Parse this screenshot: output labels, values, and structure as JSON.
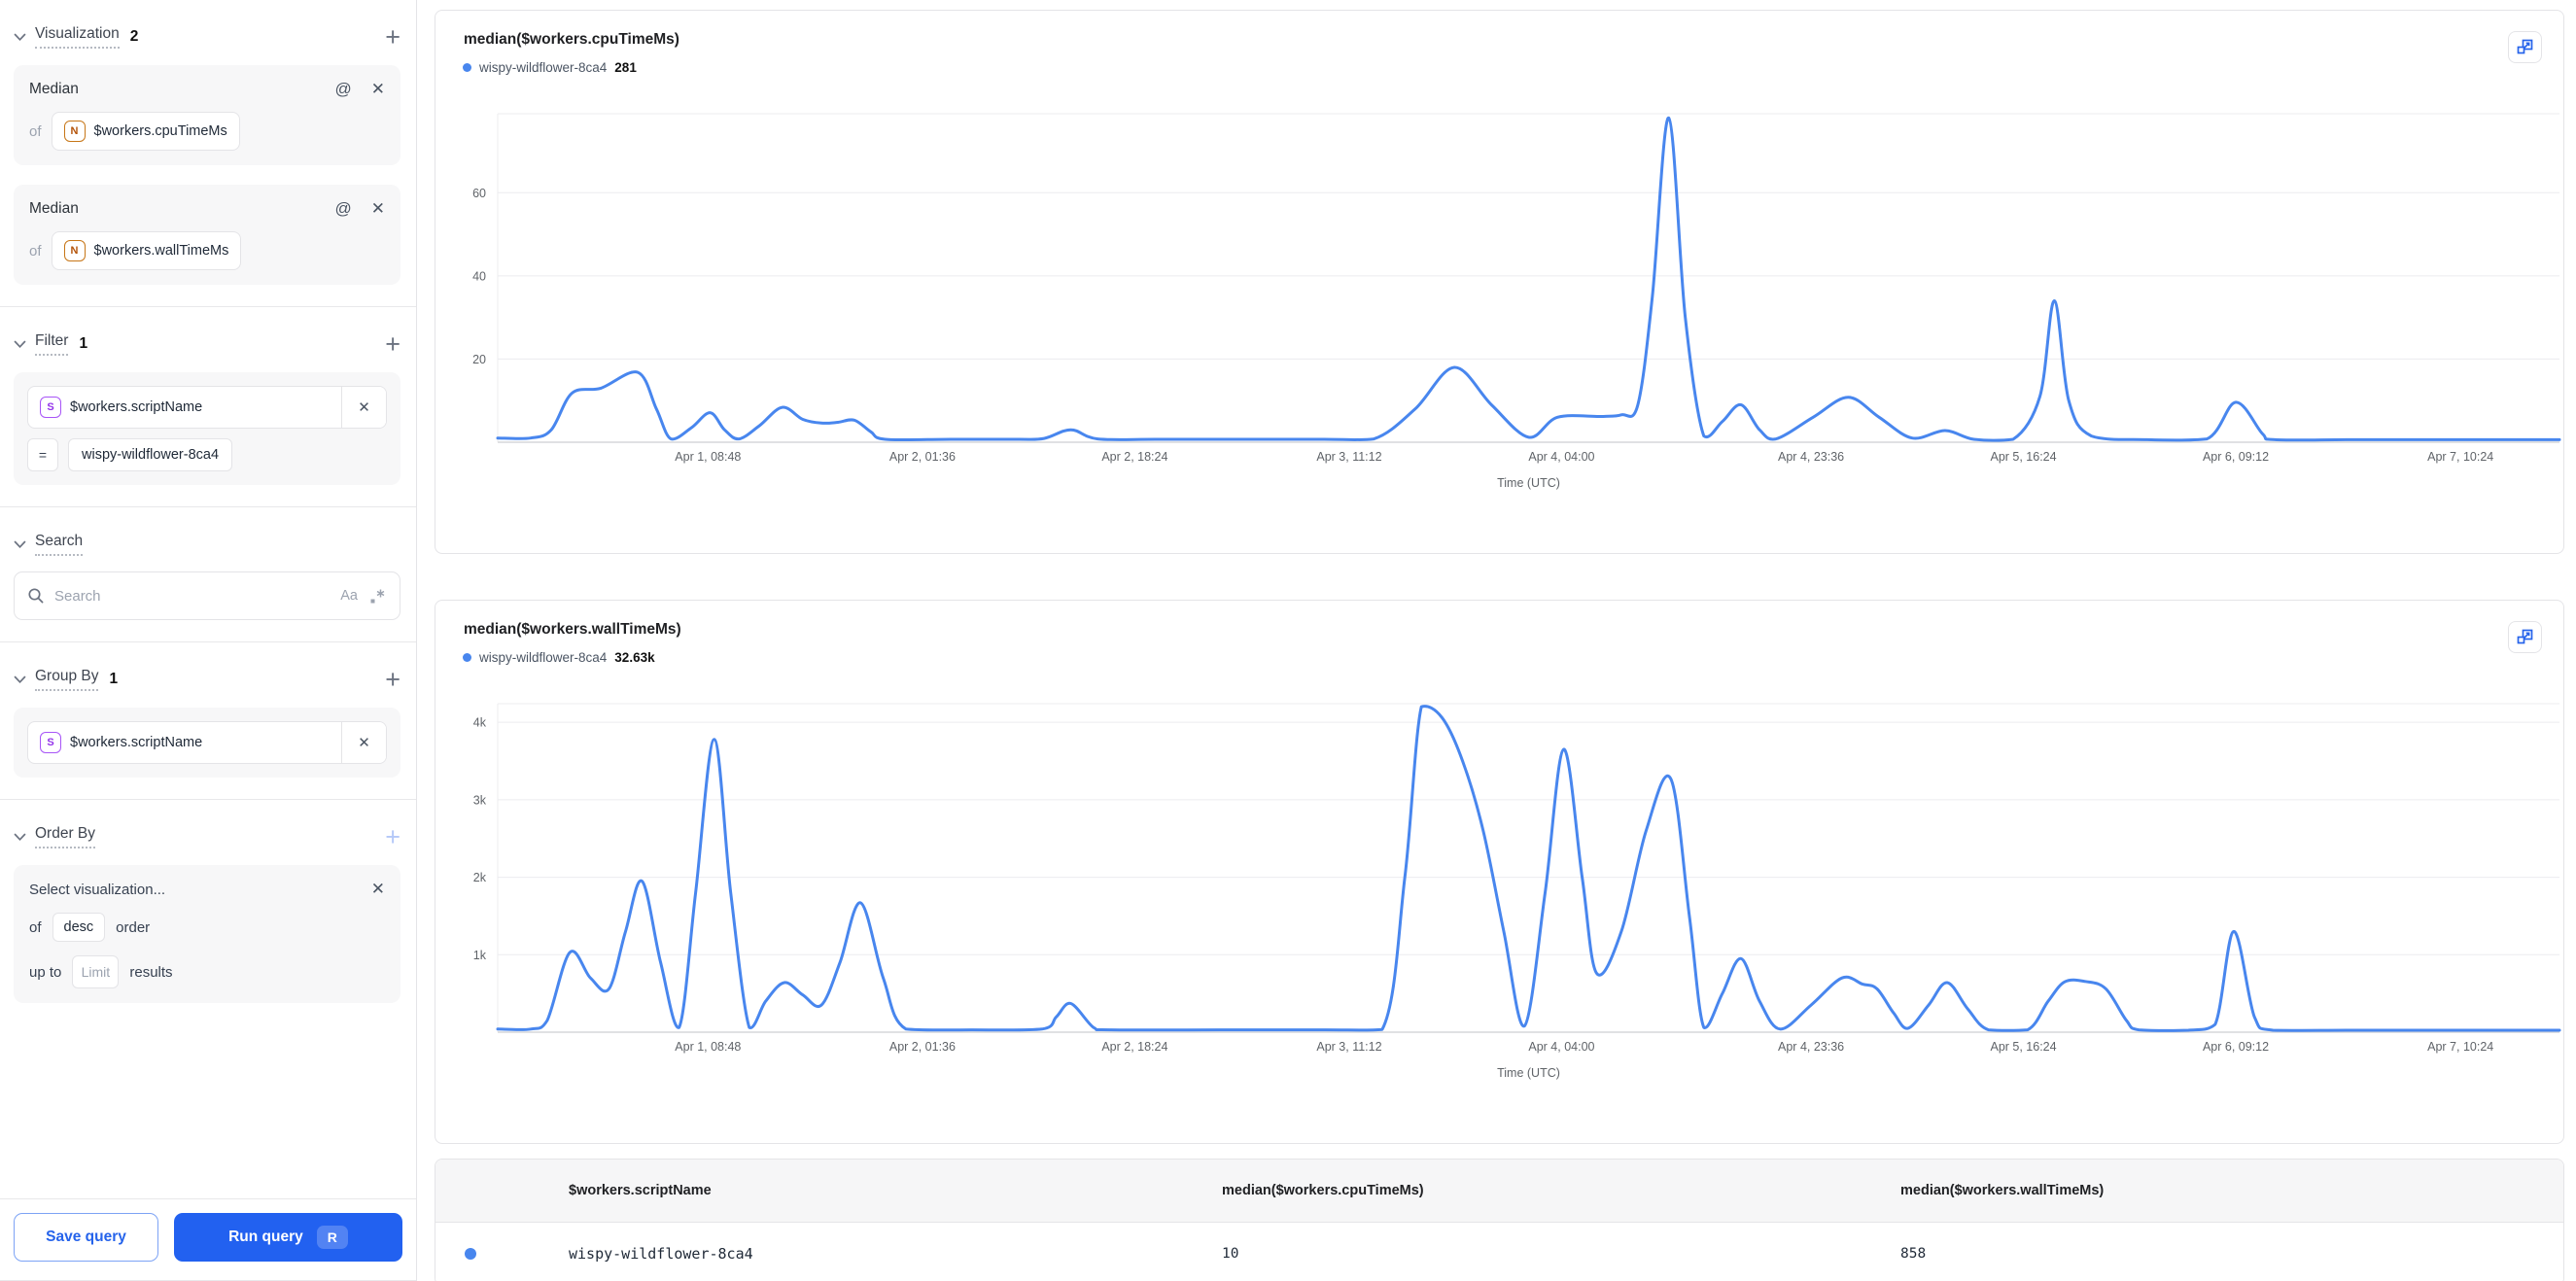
{
  "ui": {
    "accent": "#2563eb",
    "line_color": "#4886ee",
    "grid_color": "#ececef",
    "baseline_color": "#d5d7da"
  },
  "sidebar": {
    "visualization": {
      "label": "Visualization",
      "count": "2",
      "cards": [
        {
          "title": "Median",
          "of": "of",
          "type_letter": "N",
          "field": "$workers.cpuTimeMs"
        },
        {
          "title": "Median",
          "of": "of",
          "type_letter": "N",
          "field": "$workers.wallTimeMs"
        }
      ]
    },
    "filter": {
      "label": "Filter",
      "count": "1",
      "card": {
        "type_letter": "S",
        "field": "$workers.scriptName",
        "operator": "=",
        "value": "wispy-wildflower-8ca4"
      }
    },
    "search": {
      "label": "Search",
      "placeholder": "Search",
      "case_toggle": "Aa"
    },
    "group_by": {
      "label": "Group By",
      "count": "1",
      "card": {
        "type_letter": "S",
        "field": "$workers.scriptName"
      }
    },
    "order_by": {
      "label": "Order By",
      "card": {
        "placeholder": "Select visualization...",
        "of": "of",
        "direction": "desc",
        "order": "order",
        "up_to": "up to",
        "limit_placeholder": "Limit",
        "results": "results"
      }
    },
    "footer": {
      "save": "Save query",
      "run": "Run query",
      "shortcut": "R"
    }
  },
  "chart_data": [
    {
      "type": "line",
      "title": "median($workers.cpuTimeMs)",
      "xlabel": "Time (UTC)",
      "grid": "horizontal",
      "legend_position": "top-left",
      "ylim": [
        0,
        79
      ],
      "y_ticks": [
        {
          "value": 20,
          "label": "20"
        },
        {
          "value": 40,
          "label": "40"
        },
        {
          "value": 60,
          "label": "60"
        }
      ],
      "x_ticks": [
        {
          "f": 0.102,
          "label": "Apr 1, 08:48"
        },
        {
          "f": 0.206,
          "label": "Apr 2, 01:36"
        },
        {
          "f": 0.309,
          "label": "Apr 2, 18:24"
        },
        {
          "f": 0.413,
          "label": "Apr 3, 11:12"
        },
        {
          "f": 0.516,
          "label": "Apr 4, 04:00"
        },
        {
          "f": 0.637,
          "label": "Apr 4, 23:36"
        },
        {
          "f": 0.74,
          "label": "Apr 5, 16:24"
        },
        {
          "f": 0.843,
          "label": "Apr 6, 09:12"
        },
        {
          "f": 0.952,
          "label": "Apr 7, 10:24"
        }
      ],
      "series": [
        {
          "name": "wispy-wildflower-8ca4",
          "display_value": "281",
          "color": "#4886ee",
          "points": [
            [
              0,
              1
            ],
            [
              0.016,
              1
            ],
            [
              0.026,
              3
            ],
            [
              0.036,
              11.8
            ],
            [
              0.05,
              13
            ],
            [
              0.068,
              16.8
            ],
            [
              0.077,
              8
            ],
            [
              0.084,
              0.8
            ],
            [
              0.094,
              3.5
            ],
            [
              0.103,
              7.1
            ],
            [
              0.11,
              3
            ],
            [
              0.117,
              0.8
            ],
            [
              0.127,
              4
            ],
            [
              0.138,
              8.4
            ],
            [
              0.148,
              5.5
            ],
            [
              0.157,
              4.6
            ],
            [
              0.165,
              4.8
            ],
            [
              0.173,
              5.3
            ],
            [
              0.181,
              2.5
            ],
            [
              0.188,
              0.7
            ],
            [
              0.22,
              0.7
            ],
            [
              0.252,
              0.7
            ],
            [
              0.265,
              0.9
            ],
            [
              0.278,
              3
            ],
            [
              0.291,
              0.8
            ],
            [
              0.32,
              0.7
            ],
            [
              0.36,
              0.7
            ],
            [
              0.4,
              0.7
            ],
            [
              0.425,
              0.8
            ],
            [
              0.445,
              8
            ],
            [
              0.464,
              18
            ],
            [
              0.482,
              9
            ],
            [
              0.5,
              1.2
            ],
            [
              0.514,
              6
            ],
            [
              0.535,
              6.2
            ],
            [
              0.545,
              6.6
            ],
            [
              0.553,
              9
            ],
            [
              0.56,
              35
            ],
            [
              0.568,
              78
            ],
            [
              0.576,
              30
            ],
            [
              0.585,
              1.5
            ],
            [
              0.594,
              5
            ],
            [
              0.603,
              9
            ],
            [
              0.612,
              3
            ],
            [
              0.62,
              0.8
            ],
            [
              0.638,
              6
            ],
            [
              0.655,
              10.8
            ],
            [
              0.67,
              6
            ],
            [
              0.686,
              1
            ],
            [
              0.702,
              2.8
            ],
            [
              0.716,
              0.7
            ],
            [
              0.735,
              0.7
            ],
            [
              0.748,
              11
            ],
            [
              0.755,
              34
            ],
            [
              0.762,
              10
            ],
            [
              0.773,
              1.5
            ],
            [
              0.8,
              0.6
            ],
            [
              0.829,
              0.8
            ],
            [
              0.843,
              9.6
            ],
            [
              0.856,
              2
            ],
            [
              0.862,
              0.6
            ],
            [
              0.9,
              0.6
            ],
            [
              0.95,
              0.6
            ],
            [
              1,
              0.6
            ]
          ]
        }
      ]
    },
    {
      "type": "line",
      "title": "median($workers.wallTimeMs)",
      "xlabel": "Time (UTC)",
      "grid": "horizontal",
      "legend_position": "top-left",
      "ylim": [
        0,
        4240
      ],
      "y_ticks": [
        {
          "value": 1000,
          "label": "1k"
        },
        {
          "value": 2000,
          "label": "2k"
        },
        {
          "value": 3000,
          "label": "3k"
        },
        {
          "value": 4000,
          "label": "4k"
        }
      ],
      "x_ticks": [
        {
          "f": 0.102,
          "label": "Apr 1, 08:48"
        },
        {
          "f": 0.206,
          "label": "Apr 2, 01:36"
        },
        {
          "f": 0.309,
          "label": "Apr 2, 18:24"
        },
        {
          "f": 0.413,
          "label": "Apr 3, 11:12"
        },
        {
          "f": 0.516,
          "label": "Apr 4, 04:00"
        },
        {
          "f": 0.637,
          "label": "Apr 4, 23:36"
        },
        {
          "f": 0.74,
          "label": "Apr 5, 16:24"
        },
        {
          "f": 0.843,
          "label": "Apr 6, 09:12"
        },
        {
          "f": 0.952,
          "label": "Apr 7, 10:24"
        }
      ],
      "series": [
        {
          "name": "wispy-wildflower-8ca4",
          "display_value": "32.63k",
          "color": "#4886ee",
          "points": [
            [
              0,
              40
            ],
            [
              0.016,
              40
            ],
            [
              0.024,
              150
            ],
            [
              0.035,
              1030
            ],
            [
              0.045,
              700
            ],
            [
              0.054,
              560
            ],
            [
              0.062,
              1300
            ],
            [
              0.07,
              1950
            ],
            [
              0.079,
              900
            ],
            [
              0.088,
              60
            ],
            [
              0.096,
              1800
            ],
            [
              0.105,
              3780
            ],
            [
              0.113,
              1800
            ],
            [
              0.122,
              60
            ],
            [
              0.13,
              400
            ],
            [
              0.139,
              640
            ],
            [
              0.148,
              480
            ],
            [
              0.157,
              350
            ],
            [
              0.166,
              900
            ],
            [
              0.176,
              1670
            ],
            [
              0.187,
              700
            ],
            [
              0.198,
              40
            ],
            [
              0.23,
              30
            ],
            [
              0.264,
              40
            ],
            [
              0.271,
              200
            ],
            [
              0.278,
              370
            ],
            [
              0.289,
              60
            ],
            [
              0.297,
              30
            ],
            [
              0.35,
              30
            ],
            [
              0.4,
              30
            ],
            [
              0.429,
              35
            ],
            [
              0.44,
              2000
            ],
            [
              0.448,
              4200
            ],
            [
              0.458,
              4060
            ],
            [
              0.468,
              3500
            ],
            [
              0.478,
              2600
            ],
            [
              0.488,
              1300
            ],
            [
              0.498,
              80
            ],
            [
              0.508,
              1800
            ],
            [
              0.517,
              3650
            ],
            [
              0.526,
              2000
            ],
            [
              0.533,
              760
            ],
            [
              0.545,
              1300
            ],
            [
              0.557,
              2600
            ],
            [
              0.569,
              3270
            ],
            [
              0.578,
              1500
            ],
            [
              0.585,
              60
            ],
            [
              0.594,
              500
            ],
            [
              0.603,
              950
            ],
            [
              0.612,
              400
            ],
            [
              0.622,
              40
            ],
            [
              0.637,
              350
            ],
            [
              0.652,
              700
            ],
            [
              0.662,
              620
            ],
            [
              0.669,
              560
            ],
            [
              0.677,
              250
            ],
            [
              0.684,
              50
            ],
            [
              0.694,
              350
            ],
            [
              0.703,
              640
            ],
            [
              0.713,
              300
            ],
            [
              0.723,
              30
            ],
            [
              0.742,
              30
            ],
            [
              0.752,
              400
            ],
            [
              0.76,
              650
            ],
            [
              0.77,
              655
            ],
            [
              0.78,
              560
            ],
            [
              0.79,
              150
            ],
            [
              0.796,
              30
            ],
            [
              0.82,
              25
            ],
            [
              0.833,
              100
            ],
            [
              0.842,
              1300
            ],
            [
              0.852,
              200
            ],
            [
              0.861,
              25
            ],
            [
              0.9,
              25
            ],
            [
              0.95,
              25
            ],
            [
              1,
              25
            ]
          ]
        }
      ]
    }
  ],
  "table": {
    "headers": [
      "$workers.scriptName",
      "median($workers.cpuTimeMs)",
      "median($workers.wallTimeMs)"
    ],
    "rows": [
      {
        "dot_color": "#4886ee",
        "script": "wispy-wildflower-8ca4",
        "cpu": "10",
        "wall": "858"
      }
    ]
  }
}
